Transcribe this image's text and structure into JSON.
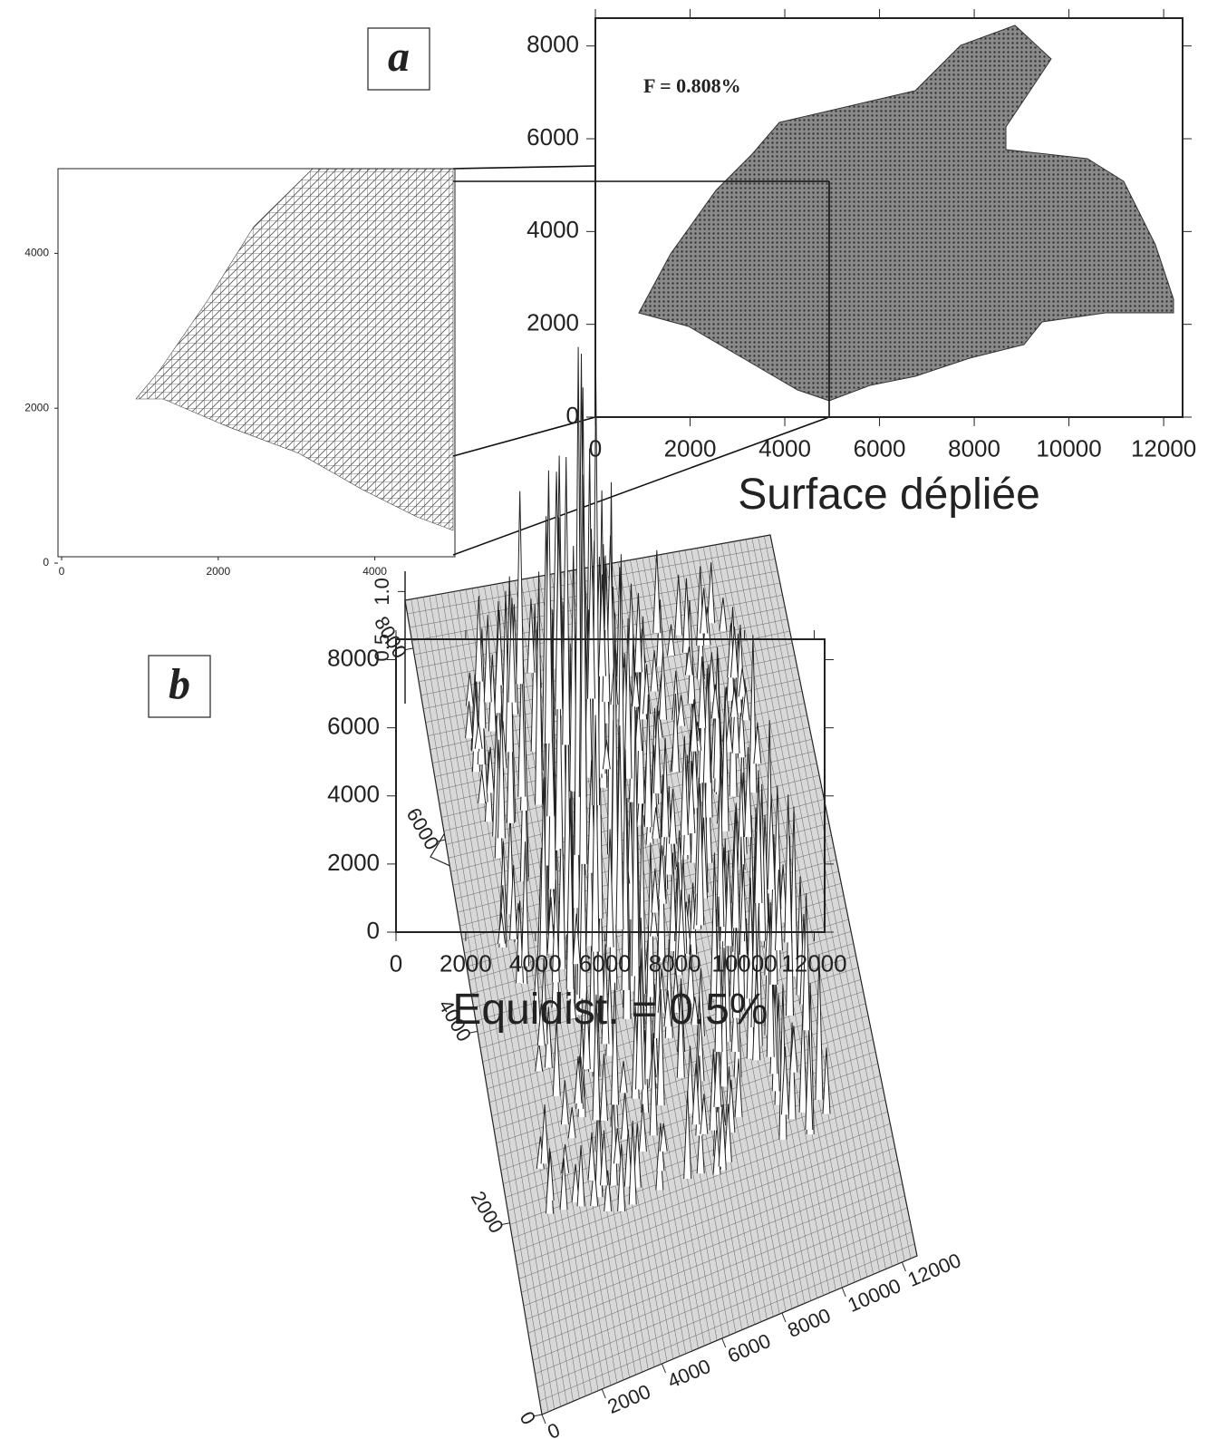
{
  "chart_data": [
    {
      "type": "mesh",
      "xlim": [
        0,
        5000
      ],
      "ylim": [
        0,
        5000
      ],
      "xticks": [
        0,
        2000,
        4000
      ],
      "yticks": [
        0,
        2000,
        4000
      ]
    },
    {
      "type": "area",
      "panel": "a",
      "annotation": "F = 0.808%",
      "xlabel": "Surface dépliée",
      "xlim": [
        0,
        12400
      ],
      "ylim": [
        0,
        8600
      ],
      "xticks": [
        0,
        2000,
        4000,
        6000,
        8000,
        10000,
        12000
      ],
      "yticks": [
        0,
        2000,
        4000,
        6000,
        8000
      ]
    },
    {
      "type": "contour",
      "panel": "b",
      "xlabel": "Equidist. = 0.5%",
      "xlim": [
        0,
        12300
      ],
      "ylim": [
        0,
        8600
      ],
      "xticks": [
        0,
        2000,
        4000,
        6000,
        8000,
        10000,
        12000
      ],
      "yticks": [
        0,
        2000,
        4000,
        6000,
        8000
      ]
    },
    {
      "type": "surface3d",
      "xlim": [
        0,
        12500
      ],
      "ylim": [
        0,
        8500
      ],
      "zlim": [
        0,
        1.1
      ],
      "xticks": [
        0,
        2000,
        4000,
        6000,
        8000,
        10000,
        12000
      ],
      "yticks": [
        0,
        2000,
        4000,
        6000,
        8000
      ],
      "zticks": [
        {
          "value": 0.5,
          "label": "0.5"
        },
        {
          "value": 1,
          "label": "1.0"
        }
      ]
    }
  ]
}
